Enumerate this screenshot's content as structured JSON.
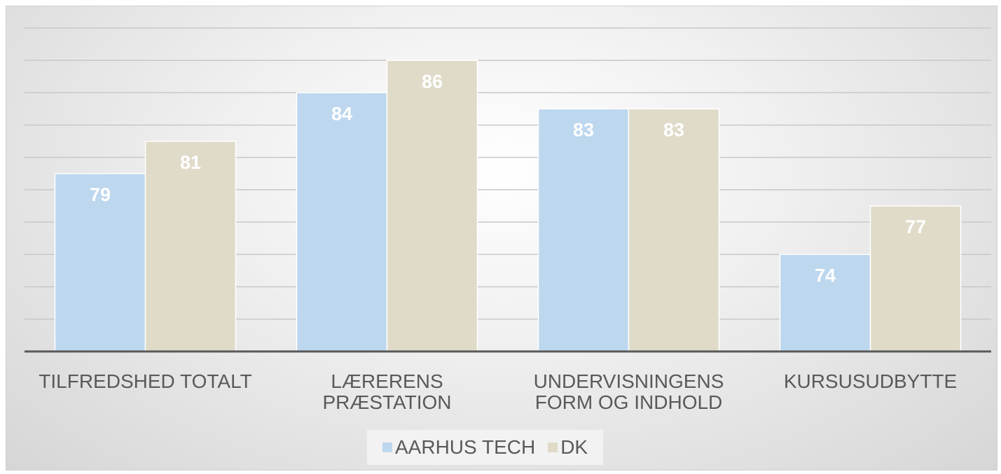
{
  "chart_data": {
    "type": "bar",
    "categories": [
      "TILFREDSHED TOTALT",
      "LÆRERENS PRÆSTATION",
      "UNDERVISNINGENS FORM OG INDHOLD",
      "KURSUSUDBYTTE"
    ],
    "series": [
      {
        "name": "AARHUS TECH",
        "color": "#bdd7ee",
        "values": [
          79,
          84,
          83,
          74
        ]
      },
      {
        "name": "DK",
        "color": "#e0dbc9",
        "values": [
          81,
          86,
          83,
          77
        ]
      }
    ],
    "ylim": [
      68,
      88
    ],
    "yticks": [
      68,
      70,
      72,
      74,
      76,
      78,
      80,
      82,
      84,
      86,
      88
    ],
    "grid": true,
    "legend": "bottom"
  }
}
